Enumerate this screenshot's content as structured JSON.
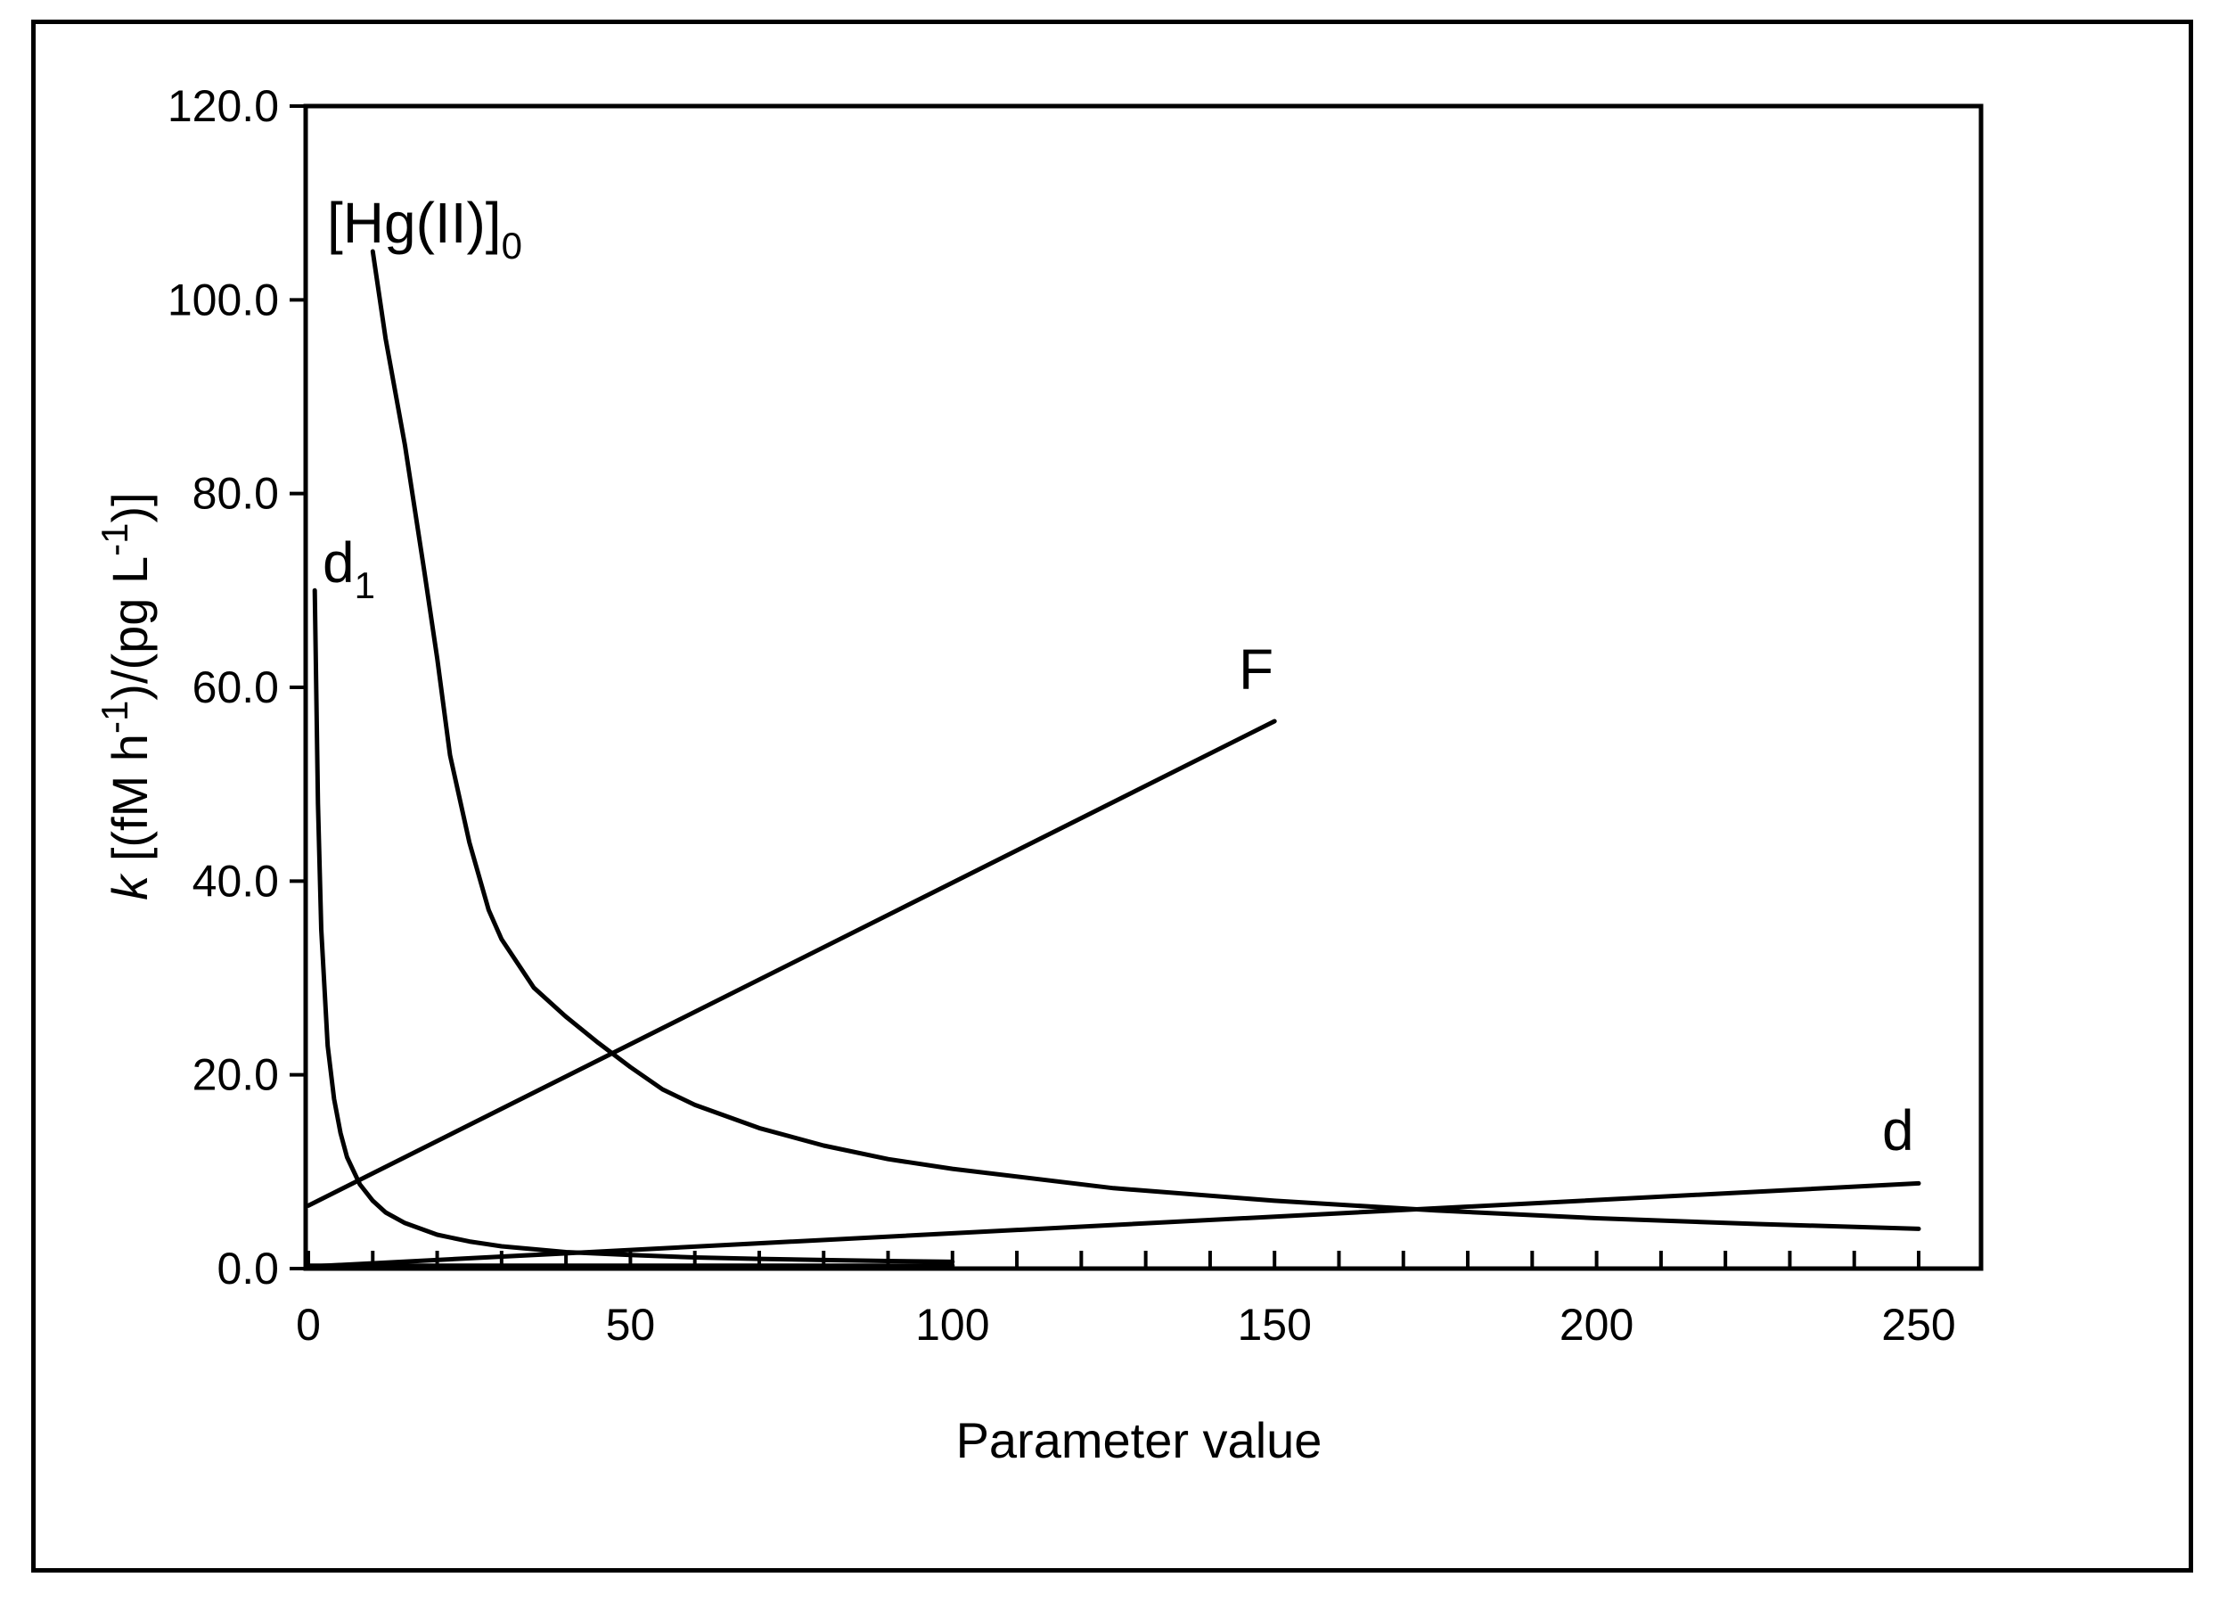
{
  "chart_data": {
    "type": "line",
    "title": "",
    "xlabel": "Parameter value",
    "ylabel": {
      "symbol": "k",
      "units_main": " [(fM h",
      "sup1": "-1",
      "mid": ")/(pg  L",
      "sup2": "-1",
      "end": ")]"
    },
    "xlim": [
      0,
      260
    ],
    "ylim": [
      0,
      120
    ],
    "x_ticks": [
      0,
      50,
      100,
      150,
      200,
      250
    ],
    "x_tick_labels": [
      "0",
      "50",
      "100",
      "150",
      "200",
      "250"
    ],
    "y_ticks": [
      0,
      20,
      40,
      60,
      80,
      100,
      120
    ],
    "y_tick_labels": [
      "0.0",
      "20.0",
      "40.0",
      "60.0",
      "80.0",
      "100.0",
      "120.0"
    ],
    "grid": false,
    "legend": "none",
    "line_color": "#000000",
    "series": [
      {
        "id": "hg",
        "name": "[Hg(II)]0",
        "label_main": "[Hg(II)]",
        "label_sub": "0",
        "x": [
          10,
          12,
          15,
          18,
          20,
          22,
          25,
          28,
          30,
          35,
          40,
          45,
          50,
          55,
          60,
          70,
          80,
          90,
          100,
          125,
          150,
          175,
          200,
          225,
          250
        ],
        "y": [
          105,
          96,
          85,
          72,
          63,
          53,
          44,
          37,
          34,
          29,
          26,
          23.3,
          20.8,
          18.5,
          16.9,
          14.5,
          12.7,
          11.3,
          10.3,
          8.3,
          7,
          6,
          5.2,
          4.6,
          4.1
        ]
      },
      {
        "id": "d1",
        "name": "d1",
        "label_main": "d",
        "label_sub": "1",
        "x": [
          1,
          1.5,
          2,
          3,
          4,
          5,
          6,
          8,
          10,
          12,
          15,
          20,
          25,
          30,
          40,
          50,
          60,
          70,
          80,
          90,
          100
        ],
        "y": [
          70,
          48,
          35,
          23,
          17.5,
          14,
          11.5,
          8.7,
          7,
          5.8,
          4.7,
          3.5,
          2.8,
          2.3,
          1.7,
          1.4,
          1.15,
          1,
          0.88,
          0.78,
          0.7
        ]
      },
      {
        "id": "F",
        "name": "F",
        "label_main": "F",
        "label_sub": "",
        "x": [
          0,
          150
        ],
        "y": [
          6.5,
          56.5
        ]
      },
      {
        "id": "d",
        "name": "d",
        "label_main": "d",
        "label_sub": "",
        "x": [
          0,
          250
        ],
        "y": [
          0.2,
          8.8
        ]
      },
      {
        "id": "flat",
        "name": "",
        "label_main": "",
        "label_sub": "",
        "x": [
          0,
          100
        ],
        "y": [
          0.3,
          0.3
        ]
      }
    ]
  }
}
